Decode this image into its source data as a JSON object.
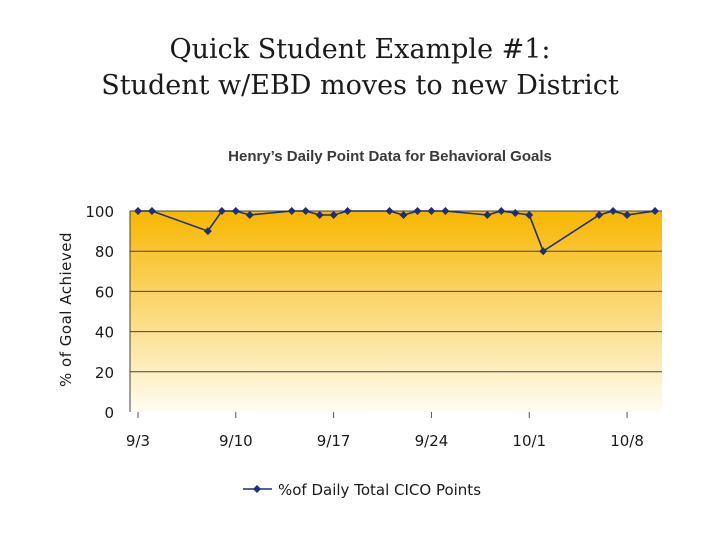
{
  "slide": {
    "title_line1": "Quick Student Example #1:",
    "title_line2": "Student w/EBD moves to new District"
  },
  "chart_data": {
    "type": "line",
    "title": "Henry’s Daily Point Data for Behavioral Goals",
    "xlabel": "",
    "ylabel": "% of Goal Achieved",
    "ylim": [
      0,
      100
    ],
    "yticks": [
      0,
      20,
      40,
      60,
      80,
      100
    ],
    "x_tick_labels": [
      {
        "day": 0,
        "label": "9/3"
      },
      {
        "day": 7,
        "label": "9/10"
      },
      {
        "day": 14,
        "label": "9/17"
      },
      {
        "day": 21,
        "label": "9/24"
      },
      {
        "day": 28,
        "label": "10/1"
      },
      {
        "day": 35,
        "label": "10/8"
      }
    ],
    "grid": "horizontal",
    "legend": "bottom",
    "fill_colors": [
      "#f7b600",
      "#fffdf3"
    ],
    "series": [
      {
        "name": "%of Daily Total CICO Points",
        "color": "#1f2f74",
        "points": [
          [
            0,
            100
          ],
          [
            1,
            100
          ],
          [
            5,
            90
          ],
          [
            6,
            100
          ],
          [
            7,
            100
          ],
          [
            8,
            98
          ],
          [
            11,
            100
          ],
          [
            12,
            100
          ],
          [
            13,
            98
          ],
          [
            14,
            98
          ],
          [
            15,
            100
          ],
          [
            18,
            100
          ],
          [
            19,
            98
          ],
          [
            20,
            100
          ],
          [
            21,
            100
          ],
          [
            22,
            100
          ],
          [
            25,
            98
          ],
          [
            26,
            100
          ],
          [
            27,
            99
          ],
          [
            28,
            98
          ],
          [
            29,
            80
          ],
          [
            33,
            98
          ],
          [
            34,
            100
          ],
          [
            35,
            98
          ],
          [
            37,
            100
          ]
        ]
      }
    ]
  }
}
